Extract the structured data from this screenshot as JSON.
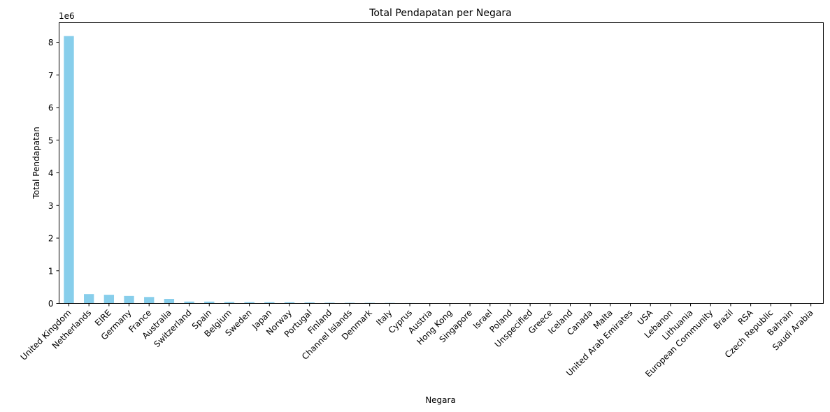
{
  "chart_data": {
    "type": "bar",
    "title": "Total Pendapatan per Negara",
    "xlabel": "Negara",
    "ylabel": "Total Pendapatan",
    "y_offset_label": "1e6",
    "bar_color": "#87ceeb",
    "ylim": [
      0,
      8.6
    ],
    "yticks": [
      0,
      1,
      2,
      3,
      4,
      5,
      6,
      7,
      8
    ],
    "grid": false,
    "categories": [
      "United Kingdom",
      "Netherlands",
      "EIRE",
      "Germany",
      "France",
      "Australia",
      "Switzerland",
      "Spain",
      "Belgium",
      "Sweden",
      "Japan",
      "Norway",
      "Portugal",
      "Finland",
      "Channel Islands",
      "Denmark",
      "Italy",
      "Cyprus",
      "Austria",
      "Hong Kong",
      "Singapore",
      "Israel",
      "Poland",
      "Unspecified",
      "Greece",
      "Iceland",
      "Canada",
      "Malta",
      "United Arab Emirates",
      "USA",
      "Lebanon",
      "Lithuania",
      "European Community",
      "Brazil",
      "RSA",
      "Czech Republic",
      "Bahrain",
      "Saudi Arabia"
    ],
    "values": [
      8.19,
      0.285,
      0.265,
      0.228,
      0.197,
      0.138,
      0.056,
      0.055,
      0.041,
      0.038,
      0.037,
      0.035,
      0.029,
      0.023,
      0.02,
      0.019,
      0.017,
      0.013,
      0.01,
      0.01,
      0.009,
      0.008,
      0.007,
      0.005,
      0.005,
      0.004,
      0.004,
      0.003,
      0.002,
      0.002,
      0.002,
      0.002,
      0.001,
      0.001,
      0.001,
      0.001,
      0.001,
      0.0001
    ]
  }
}
